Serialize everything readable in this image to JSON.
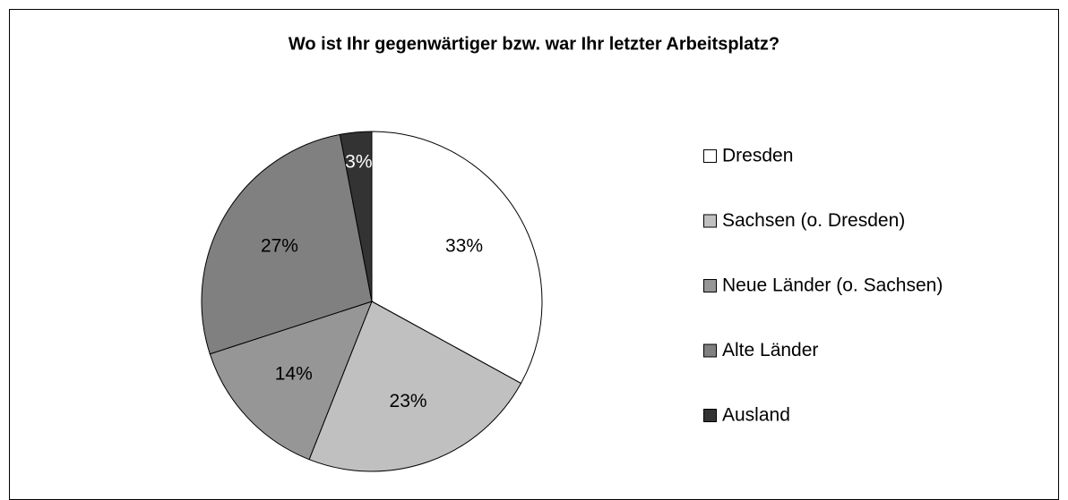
{
  "chart_data": {
    "type": "pie",
    "title": "Wo ist Ihr gegenwärtiger bzw. war Ihr letzter Arbeitsplatz?",
    "categories": [
      "Dresden",
      "Sachsen (o. Dresden)",
      "Neue Länder (o. Sachsen)",
      "Alte Länder",
      "Ausland"
    ],
    "values": [
      33,
      23,
      14,
      27,
      3
    ],
    "value_labels": [
      "33%",
      "23%",
      "14%",
      "27%",
      "3%"
    ],
    "colors": [
      "#ffffff",
      "#c0c0c0",
      "#969696",
      "#808080",
      "#333333"
    ],
    "legend": "right"
  }
}
